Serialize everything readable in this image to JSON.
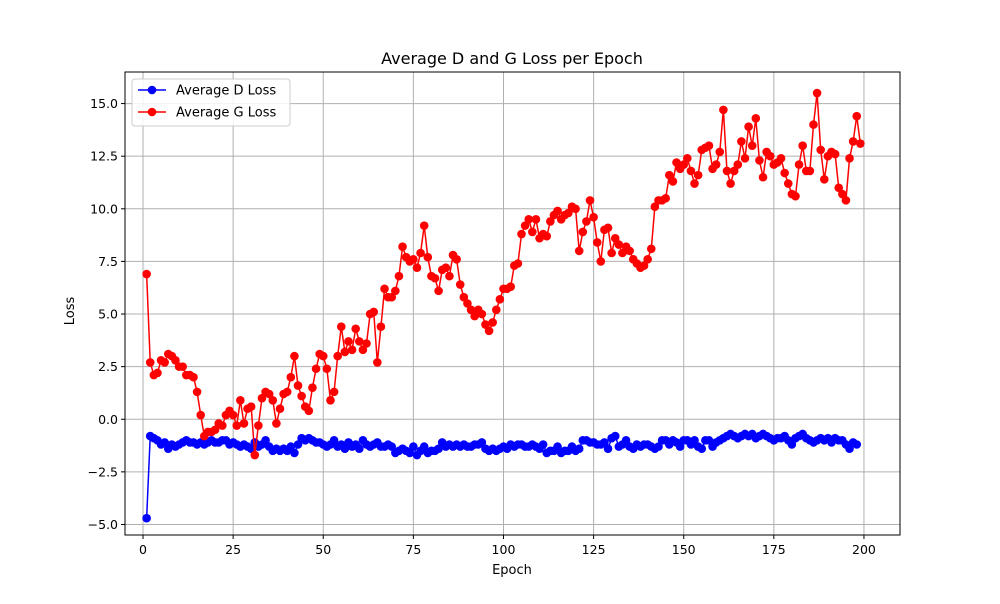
{
  "chart_data": {
    "type": "line",
    "title": "Average D and G Loss per Epoch",
    "xlabel": "Epoch",
    "ylabel": "Loss",
    "xlim": [
      -5,
      210
    ],
    "ylim": [
      -5.5,
      16.5
    ],
    "xticks": [
      0,
      25,
      50,
      75,
      100,
      125,
      150,
      175,
      200
    ],
    "yticks": [
      -5.0,
      -2.5,
      0.0,
      2.5,
      5.0,
      7.5,
      10.0,
      12.5,
      15.0
    ],
    "xtick_labels": [
      "0",
      "25",
      "50",
      "75",
      "100",
      "125",
      "150",
      "175",
      "200"
    ],
    "ytick_labels": [
      "−5.0",
      "−2.5",
      "0.0",
      "2.5",
      "5.0",
      "7.5",
      "10.0",
      "12.5",
      "15.0"
    ],
    "grid": true,
    "legend_position": "top-left",
    "x_start": 1,
    "x_step": 1,
    "series": [
      {
        "name": "Average D Loss",
        "color": "#0000ff",
        "marker": "circle",
        "values": [
          -4.7,
          -0.8,
          -0.9,
          -1.0,
          -1.2,
          -1.1,
          -1.4,
          -1.2,
          -1.3,
          -1.2,
          -1.1,
          -1.0,
          -1.1,
          -1.1,
          -1.2,
          -1.1,
          -1.2,
          -1.1,
          -1.0,
          -1.1,
          -1.1,
          -1.0,
          -1.0,
          -1.2,
          -1.1,
          -1.2,
          -1.3,
          -1.2,
          -1.3,
          -1.4,
          -1.1,
          -1.3,
          -1.2,
          -1.0,
          -1.3,
          -1.5,
          -1.4,
          -1.5,
          -1.4,
          -1.5,
          -1.3,
          -1.6,
          -1.2,
          -0.9,
          -1.0,
          -0.9,
          -1.0,
          -1.1,
          -1.1,
          -1.2,
          -1.3,
          -1.2,
          -1.0,
          -1.3,
          -1.2,
          -1.4,
          -1.1,
          -1.3,
          -1.2,
          -1.4,
          -1.0,
          -1.2,
          -1.3,
          -1.2,
          -1.1,
          -1.3,
          -1.3,
          -1.2,
          -1.3,
          -1.6,
          -1.5,
          -1.4,
          -1.5,
          -1.6,
          -1.3,
          -1.7,
          -1.5,
          -1.3,
          -1.6,
          -1.5,
          -1.5,
          -1.4,
          -1.1,
          -1.3,
          -1.2,
          -1.3,
          -1.2,
          -1.3,
          -1.2,
          -1.3,
          -1.3,
          -1.2,
          -1.2,
          -1.1,
          -1.4,
          -1.5,
          -1.4,
          -1.5,
          -1.4,
          -1.3,
          -1.4,
          -1.2,
          -1.3,
          -1.2,
          -1.2,
          -1.3,
          -1.3,
          -1.2,
          -1.3,
          -1.4,
          -1.2,
          -1.6,
          -1.5,
          -1.5,
          -1.3,
          -1.6,
          -1.5,
          -1.5,
          -1.3,
          -1.5,
          -1.4,
          -1.0,
          -1.0,
          -1.1,
          -1.1,
          -1.2,
          -1.2,
          -1.1,
          -1.4,
          -0.9,
          -0.8,
          -1.3,
          -1.2,
          -1.0,
          -1.3,
          -1.4,
          -1.2,
          -1.3,
          -1.2,
          -1.2,
          -1.3,
          -1.4,
          -1.3,
          -1.0,
          -1.0,
          -1.2,
          -1.0,
          -1.1,
          -1.3,
          -1.0,
          -1.0,
          -1.2,
          -1.0,
          -1.3,
          -1.4,
          -1.0,
          -1.0,
          -1.3,
          -1.1,
          -1.0,
          -0.9,
          -0.8,
          -0.7,
          -0.8,
          -0.9,
          -0.8,
          -0.7,
          -0.8,
          -0.7,
          -0.9,
          -0.8,
          -0.7,
          -0.8,
          -0.9,
          -1.0,
          -0.9,
          -0.9,
          -0.8,
          -1.0,
          -1.2,
          -0.9,
          -0.8,
          -0.7,
          -0.9,
          -1.0,
          -1.1,
          -1.0,
          -0.9,
          -1.0,
          -0.9,
          -1.1,
          -0.9,
          -1.0,
          -1.0,
          -1.2,
          -1.4,
          -1.1,
          -1.2
        ]
      },
      {
        "name": "Average G Loss",
        "color": "#ff0000",
        "marker": "circle",
        "values": [
          6.9,
          2.7,
          2.1,
          2.2,
          2.8,
          2.7,
          3.1,
          3.0,
          2.8,
          2.5,
          2.5,
          2.1,
          2.1,
          2.0,
          1.3,
          0.2,
          -0.8,
          -0.6,
          -0.6,
          -0.5,
          -0.2,
          -0.3,
          0.2,
          0.4,
          0.2,
          -0.3,
          0.9,
          -0.2,
          0.5,
          0.6,
          -1.7,
          -0.3,
          1.0,
          1.3,
          1.2,
          0.9,
          -0.2,
          0.5,
          1.2,
          1.3,
          2.0,
          3.0,
          1.6,
          1.1,
          0.6,
          0.4,
          1.5,
          2.4,
          3.1,
          3.0,
          2.4,
          0.9,
          1.3,
          3.0,
          4.4,
          3.2,
          3.7,
          3.3,
          4.3,
          3.7,
          3.3,
          3.6,
          5.0,
          5.1,
          2.7,
          4.4,
          6.2,
          5.8,
          5.8,
          6.1,
          6.8,
          8.2,
          7.7,
          7.5,
          7.6,
          7.2,
          7.9,
          9.2,
          7.7,
          6.8,
          6.7,
          6.1,
          7.1,
          7.2,
          6.8,
          7.8,
          7.6,
          6.4,
          5.8,
          5.5,
          5.2,
          4.9,
          5.2,
          5.0,
          4.5,
          4.2,
          4.6,
          5.2,
          5.7,
          6.2,
          6.2,
          6.3,
          7.3,
          7.4,
          8.8,
          9.2,
          9.5,
          8.9,
          9.5,
          8.6,
          8.8,
          8.7,
          9.4,
          9.7,
          9.9,
          9.5,
          9.7,
          9.8,
          10.1,
          10.0,
          8.0,
          8.9,
          9.4,
          10.4,
          9.6,
          8.4,
          7.5,
          9.0,
          9.1,
          7.9,
          8.6,
          8.3,
          7.9,
          8.2,
          8.0,
          7.6,
          7.4,
          7.2,
          7.3,
          7.6,
          8.1,
          10.1,
          10.4,
          10.4,
          10.5,
          11.6,
          11.3,
          12.2,
          11.9,
          12.1,
          12.4,
          11.8,
          11.2,
          11.6,
          12.8,
          12.9,
          13.0,
          11.9,
          12.1,
          12.7,
          14.7,
          11.8,
          11.2,
          11.8,
          12.1,
          13.2,
          12.4,
          13.9,
          13.0,
          14.3,
          12.3,
          11.5,
          12.7,
          12.5,
          12.1,
          12.2,
          12.4,
          11.7,
          11.2,
          10.7,
          10.6,
          12.1,
          13.0,
          11.8,
          11.8,
          14.0,
          15.5,
          12.8,
          11.4,
          12.5,
          12.7,
          12.6,
          11.0,
          10.7,
          10.4,
          12.4,
          13.2,
          14.4,
          13.1
        ]
      }
    ]
  }
}
